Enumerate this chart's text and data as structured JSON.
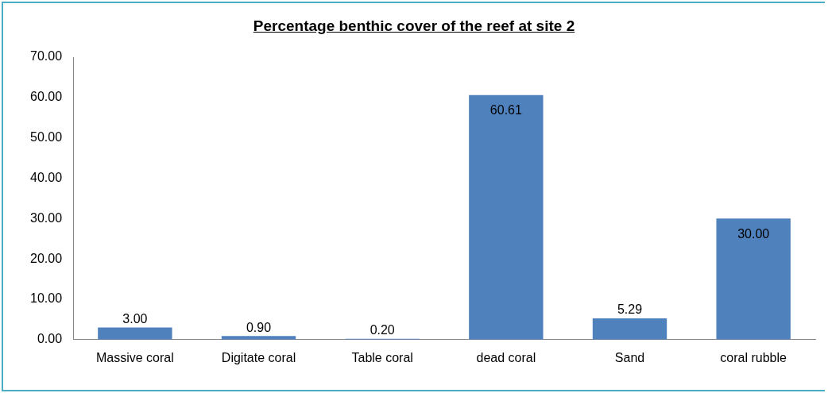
{
  "chart_data": {
    "type": "bar",
    "title": "Percentage benthic cover of the reef at site 2",
    "categories": [
      "Massive coral",
      "Digitate coral",
      "Table coral",
      "dead coral",
      "Sand",
      "coral rubble"
    ],
    "values": [
      3.0,
      0.9,
      0.2,
      60.61,
      5.29,
      30.0
    ],
    "value_labels": [
      "3.00",
      "0.90",
      "0.20",
      "60.61",
      "5.29",
      "30.00"
    ],
    "color": "#4f81bd",
    "ylim": [
      0,
      70
    ],
    "yticks": [
      {
        "value": 0,
        "label": "0.00"
      },
      {
        "value": 10,
        "label": "10.00"
      },
      {
        "value": 20,
        "label": "20.00"
      },
      {
        "value": 30,
        "label": "30.00"
      },
      {
        "value": 40,
        "label": "40.00"
      },
      {
        "value": 50,
        "label": "50.00"
      },
      {
        "value": 60,
        "label": "60.00"
      },
      {
        "value": 70,
        "label": "70.00"
      }
    ],
    "grid": false,
    "legend": false
  }
}
